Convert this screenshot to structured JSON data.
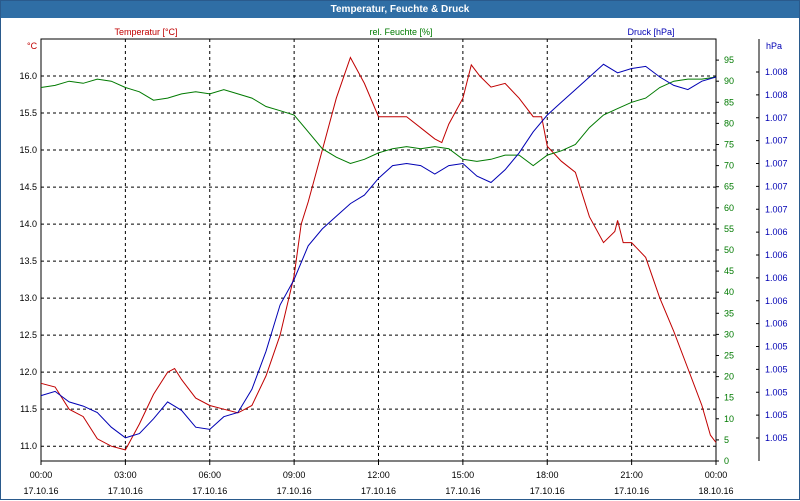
{
  "window": {
    "title": "Temperatur, Feuchte & Druck"
  },
  "chart_data": {
    "type": "line",
    "title": "Temperatur, Feuchte & Druck",
    "axes": {
      "temp": {
        "unit": "°C",
        "label": "Temperatur [°C]",
        "ylim": [
          10.8,
          16.5
        ],
        "ticks": [
          11.0,
          11.5,
          12.0,
          12.5,
          13.0,
          13.5,
          14.0,
          14.5,
          15.0,
          15.5,
          16.0
        ],
        "tick_labels": [
          "11.0",
          "11.5",
          "12.0",
          "12.5",
          "13.0",
          "13.5",
          "14.0",
          "14.5",
          "15.0",
          "15.5",
          "16.0"
        ]
      },
      "hum": {
        "unit": "%",
        "label": "rel. Feuchte [%]",
        "ylim": [
          0,
          100
        ],
        "ticks": [
          0,
          5,
          10,
          15,
          20,
          25,
          30,
          35,
          40,
          45,
          50,
          55,
          60,
          65,
          70,
          75,
          80,
          85,
          90,
          95
        ],
        "tick_labels": [
          "0",
          "5",
          "10",
          "15",
          "20",
          "25",
          "30",
          "35",
          "40",
          "45",
          "50",
          "55",
          "60",
          "65",
          "70",
          "75",
          "80",
          "85",
          "90",
          "95"
        ]
      },
      "press": {
        "unit": "hPa",
        "label": "Druck [hPa]",
        "tick_labels": [
          "1.008",
          "1.008",
          "1.007",
          "1.007",
          "1.007",
          "1.007",
          "1.007",
          "1.006",
          "1.006",
          "1.006",
          "1.006",
          "1.006",
          "1.005",
          "1.005",
          "1.005",
          "1.005",
          "1.005"
        ]
      }
    },
    "x": {
      "range_hours": [
        0,
        24
      ],
      "ticks": [
        0,
        3,
        6,
        9,
        12,
        15,
        18,
        21,
        24
      ],
      "time_labels": [
        "00:00",
        "03:00",
        "06:00",
        "09:00",
        "12:00",
        "15:00",
        "18:00",
        "21:00",
        "00:00"
      ],
      "date_labels": [
        "17.10.16",
        "17.10.16",
        "17.10.16",
        "17.10.16",
        "17.10.16",
        "17.10.16",
        "17.10.16",
        "17.10.16",
        "18.10.16"
      ]
    },
    "grid": true,
    "colors": {
      "temp": "#c00000",
      "hum": "#007a00",
      "press": "#0000b4",
      "grid": "#000000",
      "title_bg": "#2f6ea5"
    },
    "series": [
      {
        "name": "Temperatur [°C]",
        "axis": "temp",
        "points": [
          [
            0,
            11.85
          ],
          [
            0.5,
            11.8
          ],
          [
            0.75,
            11.65
          ],
          [
            1,
            11.5
          ],
          [
            1.5,
            11.4
          ],
          [
            2,
            11.1
          ],
          [
            2.5,
            11.0
          ],
          [
            3,
            10.95
          ],
          [
            3.5,
            11.3
          ],
          [
            4,
            11.7
          ],
          [
            4.5,
            12.0
          ],
          [
            4.75,
            12.05
          ],
          [
            5,
            11.9
          ],
          [
            5.5,
            11.65
          ],
          [
            6,
            11.55
          ],
          [
            6.5,
            11.5
          ],
          [
            7,
            11.45
          ],
          [
            7.5,
            11.55
          ],
          [
            8,
            11.95
          ],
          [
            8.5,
            12.5
          ],
          [
            9,
            13.3
          ],
          [
            9.25,
            14.0
          ],
          [
            9.5,
            14.3
          ],
          [
            10,
            15.0
          ],
          [
            10.5,
            15.7
          ],
          [
            11,
            16.25
          ],
          [
            11.5,
            15.9
          ],
          [
            12,
            15.45
          ],
          [
            12.5,
            15.45
          ],
          [
            13,
            15.45
          ],
          [
            13.5,
            15.3
          ],
          [
            14,
            15.15
          ],
          [
            14.25,
            15.1
          ],
          [
            14.5,
            15.35
          ],
          [
            15,
            15.7
          ],
          [
            15.3,
            16.15
          ],
          [
            15.6,
            16.0
          ],
          [
            16,
            15.85
          ],
          [
            16.5,
            15.9
          ],
          [
            17,
            15.7
          ],
          [
            17.5,
            15.45
          ],
          [
            17.8,
            15.45
          ],
          [
            18,
            15.05
          ],
          [
            18.5,
            14.85
          ],
          [
            19,
            14.7
          ],
          [
            19.5,
            14.1
          ],
          [
            20,
            13.75
          ],
          [
            20.4,
            13.9
          ],
          [
            20.5,
            14.05
          ],
          [
            20.7,
            13.75
          ],
          [
            21,
            13.75
          ],
          [
            21.5,
            13.55
          ],
          [
            22,
            13.0
          ],
          [
            22.5,
            12.55
          ],
          [
            23,
            12.05
          ],
          [
            23.5,
            11.55
          ],
          [
            23.8,
            11.15
          ],
          [
            24,
            11.05
          ]
        ]
      },
      {
        "name": "rel. Feuchte [%]",
        "axis": "hum",
        "points": [
          [
            0,
            88.5
          ],
          [
            0.5,
            89
          ],
          [
            1,
            90
          ],
          [
            1.5,
            89.5
          ],
          [
            2,
            90.5
          ],
          [
            2.5,
            90
          ],
          [
            3,
            88.5
          ],
          [
            3.5,
            87.5
          ],
          [
            4,
            85.5
          ],
          [
            4.5,
            86
          ],
          [
            5,
            87
          ],
          [
            5.5,
            87.5
          ],
          [
            6,
            87
          ],
          [
            6.5,
            88
          ],
          [
            7,
            87
          ],
          [
            7.5,
            86
          ],
          [
            8,
            84
          ],
          [
            8.5,
            83
          ],
          [
            9,
            82
          ],
          [
            9.5,
            78
          ],
          [
            10,
            74
          ],
          [
            10.5,
            72
          ],
          [
            11,
            70.5
          ],
          [
            11.5,
            71.5
          ],
          [
            12,
            73
          ],
          [
            12.5,
            74
          ],
          [
            13,
            74.5
          ],
          [
            13.5,
            74
          ],
          [
            14,
            74.5
          ],
          [
            14.5,
            74
          ],
          [
            15,
            71.5
          ],
          [
            15.5,
            71
          ],
          [
            16,
            71.5
          ],
          [
            16.5,
            72.5
          ],
          [
            17,
            72.5
          ],
          [
            17.5,
            70
          ],
          [
            18,
            72.5
          ],
          [
            18.5,
            73.5
          ],
          [
            19,
            75
          ],
          [
            19.5,
            79
          ],
          [
            20,
            82
          ],
          [
            20.5,
            83.5
          ],
          [
            21,
            85
          ],
          [
            21.5,
            86
          ],
          [
            22,
            88.5
          ],
          [
            22.5,
            90
          ],
          [
            23,
            90.5
          ],
          [
            23.5,
            90.5
          ],
          [
            24,
            91
          ]
        ]
      },
      {
        "name": "Druck [hPa]",
        "axis": "press",
        "points": [
          [
            0,
            15.5
          ],
          [
            0.5,
            16.5
          ],
          [
            1,
            14
          ],
          [
            1.5,
            13
          ],
          [
            2,
            11.5
          ],
          [
            2.5,
            8
          ],
          [
            3,
            5.5
          ],
          [
            3.5,
            6.5
          ],
          [
            4,
            10
          ],
          [
            4.5,
            14
          ],
          [
            5,
            12
          ],
          [
            5.5,
            8
          ],
          [
            6,
            7.5
          ],
          [
            6.5,
            10.5
          ],
          [
            7,
            11.5
          ],
          [
            7.5,
            17
          ],
          [
            8,
            26
          ],
          [
            8.5,
            37
          ],
          [
            9,
            43
          ],
          [
            9.5,
            51
          ],
          [
            10,
            55
          ],
          [
            10.5,
            58
          ],
          [
            11,
            61
          ],
          [
            11.5,
            63
          ],
          [
            12,
            67
          ],
          [
            12.5,
            70
          ],
          [
            13,
            70.5
          ],
          [
            13.5,
            70
          ],
          [
            14,
            68
          ],
          [
            14.5,
            70
          ],
          [
            15,
            70.5
          ],
          [
            15.5,
            67.5
          ],
          [
            16,
            66
          ],
          [
            16.5,
            69
          ],
          [
            17,
            73
          ],
          [
            17.5,
            78
          ],
          [
            18,
            82
          ],
          [
            18.5,
            85
          ],
          [
            19,
            88
          ],
          [
            19.5,
            91
          ],
          [
            20,
            94
          ],
          [
            20.5,
            92
          ],
          [
            21,
            93
          ],
          [
            21.5,
            93.5
          ],
          [
            22,
            91
          ],
          [
            22.5,
            89
          ],
          [
            23,
            88
          ],
          [
            23.5,
            90
          ],
          [
            24,
            91
          ]
        ]
      }
    ]
  }
}
